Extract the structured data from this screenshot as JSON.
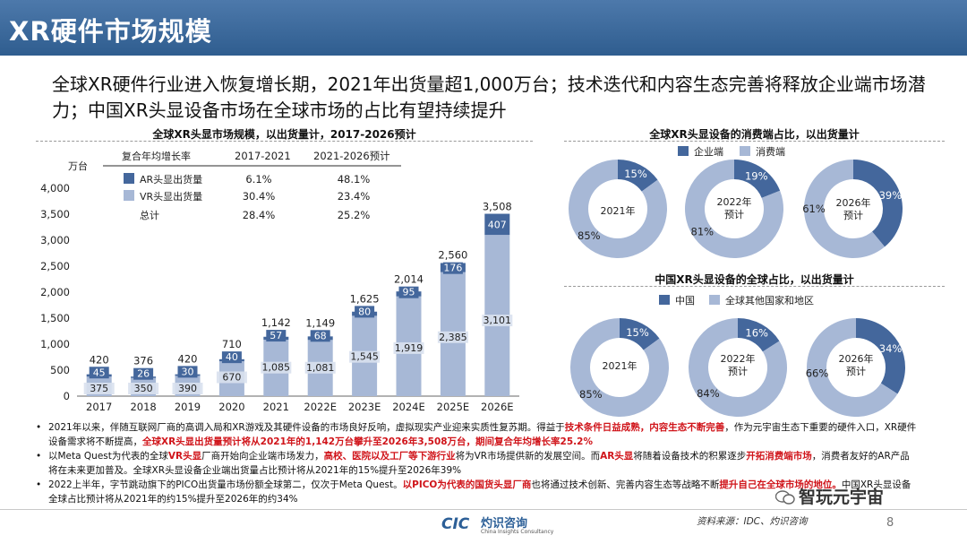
{
  "title": "XR硬件市场规模",
  "headline": "全球XR硬件行业进入恢复增长期，2021年出货量超1,000万台；技术迭代和内容生态完善将释放企业端市场潜力；中国XR头显设备市场在全球市场的占比有望持续提升",
  "bar_chart": {
    "title": "全球XR头显市场规模，以出货量计，2017-2026预计",
    "unit": "万台",
    "cagr_header": "复合年均增长率",
    "cagr_period1": "2017-2021",
    "cagr_period2": "2021-2026预计",
    "rows": [
      {
        "label": "AR头显出货量",
        "v1": "6.1%",
        "v2": "48.1%"
      },
      {
        "label": "VR头显出货量",
        "v1": "30.4%",
        "v2": "23.4%"
      },
      {
        "label": "总计",
        "v1": "28.4%",
        "v2": "25.2%"
      }
    ]
  },
  "chart_data": [
    {
      "type": "bar",
      "stacked": true,
      "title": "全球XR头显市场规模，以出货量计，2017-2026预计",
      "ylabel": "万台",
      "ylim": [
        0,
        4000
      ],
      "yticks": [
        "0",
        "500",
        "1,000",
        "1,500",
        "2,000",
        "2,500",
        "3,000",
        "3,500",
        "4,000"
      ],
      "categories": [
        "2017",
        "2018",
        "2019",
        "2020",
        "2021",
        "2022E",
        "2023E",
        "2024E",
        "2025E",
        "2026E"
      ],
      "series": [
        {
          "name": "VR头显出货量",
          "values": [
            375,
            350,
            390,
            670,
            1085,
            1081,
            1545,
            1919,
            2385,
            3101
          ],
          "color": "#a7b8d6"
        },
        {
          "name": "AR头显出货量",
          "values": [
            45,
            26,
            30,
            40,
            57,
            68,
            80,
            95,
            176,
            407
          ],
          "color": "#44679c"
        }
      ],
      "totals": [
        420,
        376,
        420,
        710,
        1142,
        1149,
        1625,
        2014,
        2560,
        3508
      ],
      "value_labels_vr": [
        "375",
        "350",
        "390",
        "670",
        "1,085",
        "1,081",
        "1,545",
        "1,919",
        "2,385",
        "3,101"
      ],
      "value_labels_ar": [
        "45",
        "26",
        "30",
        "40",
        "57",
        "68",
        "80",
        "95",
        "176",
        "407"
      ],
      "total_labels": [
        "420",
        "376",
        "420",
        "710",
        "1,142",
        "1,149",
        "1,625",
        "2,014",
        "2,560",
        "3,508"
      ]
    },
    {
      "type": "pie",
      "donut": true,
      "title": "全球XR头显设备的消费端占比，以出货量计",
      "legend": [
        "企业端",
        "消费端"
      ],
      "charts": [
        {
          "center": "2021年",
          "slices": [
            15,
            85
          ],
          "labels": [
            "15%",
            "85%"
          ]
        },
        {
          "center": "2022年预计",
          "slices": [
            19,
            81
          ],
          "labels": [
            "19%",
            "81%"
          ]
        },
        {
          "center": "2026年预计",
          "slices": [
            39,
            61
          ],
          "labels": [
            "39%",
            "61%"
          ]
        }
      ]
    },
    {
      "type": "pie",
      "donut": true,
      "title": "中国XR头显设备的全球占比，以出货量计",
      "legend": [
        "中国",
        "全球其他国家和地区"
      ],
      "charts": [
        {
          "center": "2021年",
          "slices": [
            15,
            85
          ],
          "labels": [
            "15%",
            "85%"
          ]
        },
        {
          "center": "2022年预计",
          "slices": [
            16,
            84
          ],
          "labels": [
            "16%",
            "84%"
          ]
        },
        {
          "center": "2026年预计",
          "slices": [
            34,
            66
          ],
          "labels": [
            "34%",
            "66%"
          ]
        }
      ]
    }
  ],
  "donuts1": {
    "title": "全球XR头显设备的消费端占比，以出货量计",
    "legend_a": "企业端",
    "legend_b": "消费端",
    "c1": "2021年",
    "c2a": "2022年",
    "c2b": "预计",
    "c3a": "2026年",
    "c3b": "预计"
  },
  "donuts2": {
    "title": "中国XR头显设备的全球占比，以出货量计",
    "legend_a": "中国",
    "legend_b": "全球其他国家和地区",
    "c1": "2021年",
    "c2a": "2022年",
    "c2b": "预计",
    "c3a": "2026年",
    "c3b": "预计"
  },
  "colors": {
    "dark": "#44679c",
    "light": "#a7b8d6",
    "title_bar": "#3d6a9c",
    "red": "#d0141a"
  },
  "footnotes": {
    "f1_a": "2021年以来，伴随互联网厂商的高调入局和XR游戏及其硬件设备的市场良好反响，虚拟现实产业迎来实质性复苏期。得益于",
    "f1_b": "技术条件日益成熟，内容生态不断完善",
    "f1_c": "，作为元宇宙生态下重要的硬件入口，XR硬件设备需求将不断提高，",
    "f1_d": "全球XR头显出货量预计将从2021年的1,142万台攀升至2026年3,508万台，期间复合年均增长率25.2%",
    "f2_a": "以Meta Quest为代表的全球",
    "f2_b": "VR头显",
    "f2_c": "厂商开始向企业端市场发力，",
    "f2_d": "高校、医院以及工厂等下游行业",
    "f2_e": "将为VR市场提供新的发展空间。而",
    "f2_f": "AR头显",
    "f2_g": "将随着设备技术的积累逐步",
    "f2_h": "开拓消费端市场",
    "f2_i": "，消费者友好的AR产品将在未来更加普及。全球XR头显设备企业端出货量占比预计将从2021年的15%提升至2026年39%",
    "f3_a": "2022上半年，字节跳动旗下的PICO出货量市场份额全球第二，仅次于Meta Quest。",
    "f3_b": "以PICO为代表的国货头显厂商",
    "f3_c": "也将通过技术创新、完善内容生态等战略不断",
    "f3_d": "提升自己在全球市场的地位。",
    "f3_e": "中国XR头显设备全球占比预计将从2021年的约15%提升至2026年的约34%"
  },
  "logo": {
    "mark": "CIC",
    "name": "灼识咨询",
    "tagline": "China Insights Consultancy"
  },
  "source": "资料来源：IDC、灼识咨询",
  "wechat": "智玩元宇宙",
  "page": "8",
  "watermark": "智玩元宇宙"
}
